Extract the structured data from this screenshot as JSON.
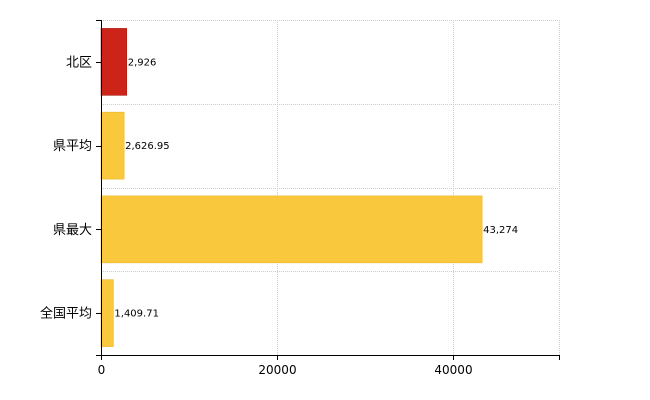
{
  "chart_data": {
    "type": "bar",
    "orientation": "horizontal",
    "title": "",
    "xlabel": "",
    "ylabel": "",
    "categories": [
      "北区",
      "県平均",
      "県最大",
      "全国平均"
    ],
    "values": [
      2926,
      2626.95,
      43274,
      1409.71
    ],
    "value_labels": [
      "2,926",
      "2,626.95",
      "43,274",
      "1,409.71"
    ],
    "xlim": [
      0,
      52000
    ],
    "xticks": [
      0,
      20000,
      40000
    ],
    "xtick_labels": [
      "0",
      "20000",
      "40000"
    ],
    "grid": true,
    "legend": "none",
    "colors": {
      "highlight": "#cc2418",
      "highlight_stroke": "#a01a10",
      "default": "#fac83c",
      "default_stroke": "#e8b020"
    },
    "highlight_index": 0
  }
}
